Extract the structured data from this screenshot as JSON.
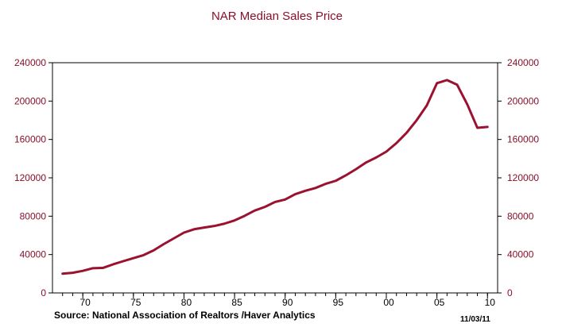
{
  "chart_data": {
    "type": "line",
    "title": "NAR Median Sales Price",
    "xlabel": "",
    "ylabel": "",
    "xlim": [
      1967,
      2011
    ],
    "ylim": [
      0,
      240000
    ],
    "x_ticks": [
      1970,
      1975,
      1980,
      1985,
      1990,
      1995,
      2000,
      2005,
      2010
    ],
    "x_tick_labels": [
      "70",
      "75",
      "80",
      "85",
      "90",
      "95",
      "00",
      "05",
      "10"
    ],
    "y_ticks": [
      0,
      40000,
      80000,
      120000,
      160000,
      200000,
      240000
    ],
    "y_tick_labels": [
      "0",
      "40000",
      "80000",
      "120000",
      "160000",
      "200000",
      "240000"
    ],
    "right_axis_mirrors_left": true,
    "grid": false,
    "legend": "none",
    "series": [
      {
        "color": "#9b1230",
        "x": [
          1968,
          1969,
          1970,
          1971,
          1972,
          1973,
          1974,
          1975,
          1976,
          1977,
          1978,
          1979,
          1980,
          1981,
          1982,
          1983,
          1984,
          1985,
          1986,
          1987,
          1988,
          1989,
          1990,
          1991,
          1992,
          1993,
          1994,
          1995,
          1996,
          1997,
          1998,
          1999,
          2000,
          2001,
          2002,
          2003,
          2004,
          2005,
          2006,
          2007,
          2008,
          2009,
          2010
        ],
        "y": [
          20100,
          21000,
          23000,
          25800,
          26100,
          29800,
          33100,
          36300,
          39400,
          44400,
          50900,
          56900,
          62900,
          66400,
          68200,
          69800,
          72200,
          75600,
          80400,
          85900,
          89700,
          94800,
          97400,
          103000,
          106500,
          109400,
          113700,
          116900,
          122600,
          129000,
          136000,
          141200,
          147300,
          156200,
          166900,
          180100,
          195400,
          218600,
          221900,
          217000,
          196600,
          172100,
          173100
        ]
      }
    ]
  },
  "footer": {
    "source": "Source:  National Association of Realtors /Haver Analytics",
    "date": "11/03/11"
  }
}
